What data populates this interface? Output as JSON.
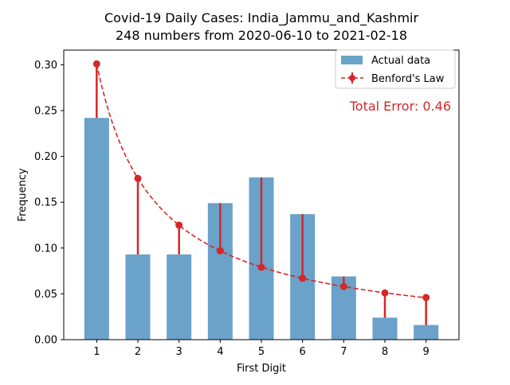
{
  "chart_data": {
    "type": "bar",
    "title": "Covid-19 Daily Cases: India_Jammu_and_Kashmir",
    "subtitle": "248 numbers from 2020-06-10 to 2021-02-18",
    "xlabel": "First Digit",
    "ylabel": "Frequency",
    "categories": [
      "1",
      "2",
      "3",
      "4",
      "5",
      "6",
      "7",
      "8",
      "9"
    ],
    "series": [
      {
        "name": "Actual data",
        "kind": "bar",
        "color": "#6aa2c9",
        "values": [
          0.242,
          0.093,
          0.093,
          0.149,
          0.177,
          0.137,
          0.069,
          0.024,
          0.016
        ]
      },
      {
        "name": "Benford's Law",
        "kind": "line-dashed-with-error-bars",
        "color": "#d62728",
        "values": [
          0.301,
          0.176,
          0.125,
          0.097,
          0.079,
          0.067,
          0.058,
          0.051,
          0.046
        ]
      }
    ],
    "yticks": [
      "0.00",
      "0.05",
      "0.10",
      "0.15",
      "0.20",
      "0.25",
      "0.30"
    ],
    "ylim": [
      0,
      0.316
    ],
    "xlim": [
      0.2,
      9.8
    ],
    "grid": false,
    "legend_placement": "top-right",
    "annotation": {
      "text": "Total Error: 0.46",
      "color": "#d62728"
    }
  }
}
